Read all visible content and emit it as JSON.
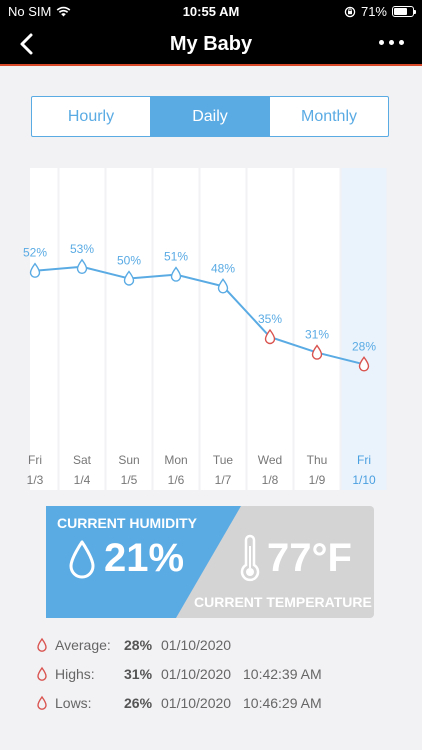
{
  "status_bar": {
    "carrier": "No SIM",
    "time": "10:55 AM",
    "battery": "71%",
    "battery_level": 0.71
  },
  "header": {
    "title": "My Baby"
  },
  "tabs": [
    {
      "label": "Hourly",
      "active": false
    },
    {
      "label": "Daily",
      "active": true
    },
    {
      "label": "Monthly",
      "active": false
    }
  ],
  "chart_data": {
    "type": "line",
    "title": "",
    "xlabel": "",
    "ylabel": "",
    "categories": [
      {
        "day": "Fri",
        "date": "1/3",
        "value": 52,
        "label": "52%"
      },
      {
        "day": "Sat",
        "date": "1/4",
        "value": 53,
        "label": "53%"
      },
      {
        "day": "Sun",
        "date": "1/5",
        "value": 50,
        "label": "50%"
      },
      {
        "day": "Mon",
        "date": "1/6",
        "value": 51,
        "label": "51%"
      },
      {
        "day": "Tue",
        "date": "1/7",
        "value": 48,
        "label": "48%"
      },
      {
        "day": "Wed",
        "date": "1/8",
        "value": 35,
        "label": "35%"
      },
      {
        "day": "Thu",
        "date": "1/9",
        "value": 31,
        "label": "31%"
      },
      {
        "day": "Fri",
        "date": "1/10",
        "value": 28,
        "label": "28%"
      }
    ],
    "highlighted_index": 7,
    "low_threshold": 40,
    "colors": {
      "line": "#5aabe4",
      "normal_drop": "#5aabe4",
      "low_drop": "#d9534f",
      "highlight": "#4a9fe0"
    }
  },
  "current": {
    "humidity_label": "CURRENT HUMIDITY",
    "humidity_value": "21%",
    "temperature_value": "77°F",
    "temperature_label": "CURRENT TEMPERATURE",
    "humidity_color": "#5aabe4",
    "temperature_color": "#d4d4d4"
  },
  "stats": [
    {
      "label": "Average:",
      "value": "28%",
      "date": "01/10/2020",
      "time": ""
    },
    {
      "label": "Highs:",
      "value": "31%",
      "date": "01/10/2020",
      "time": "10:42:39 AM"
    },
    {
      "label": "Lows:",
      "value": "26%",
      "date": "01/10/2020",
      "time": "10:46:29 AM"
    }
  ]
}
